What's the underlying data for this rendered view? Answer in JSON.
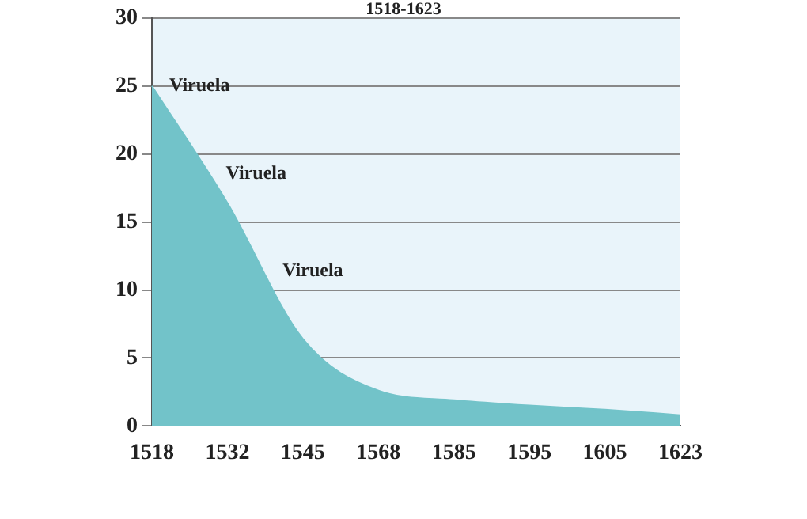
{
  "chart_data": {
    "type": "area",
    "title": "1518-1623",
    "categories": [
      "1518",
      "1532",
      "1545",
      "1568",
      "1585",
      "1595",
      "1605",
      "1623"
    ],
    "series": [
      {
        "color": "#72c3c9",
        "values": [
          25,
          16.4,
          6.4,
          2.6,
          1.9,
          1.5,
          1.2,
          0.8
        ]
      }
    ],
    "ylim": [
      0,
      30
    ],
    "yticks": [
      0,
      5,
      10,
      15,
      20,
      25,
      30
    ],
    "grid": "y",
    "legend": false,
    "annotations": [
      "Viruela",
      "Viruela",
      "Viruela"
    ]
  }
}
